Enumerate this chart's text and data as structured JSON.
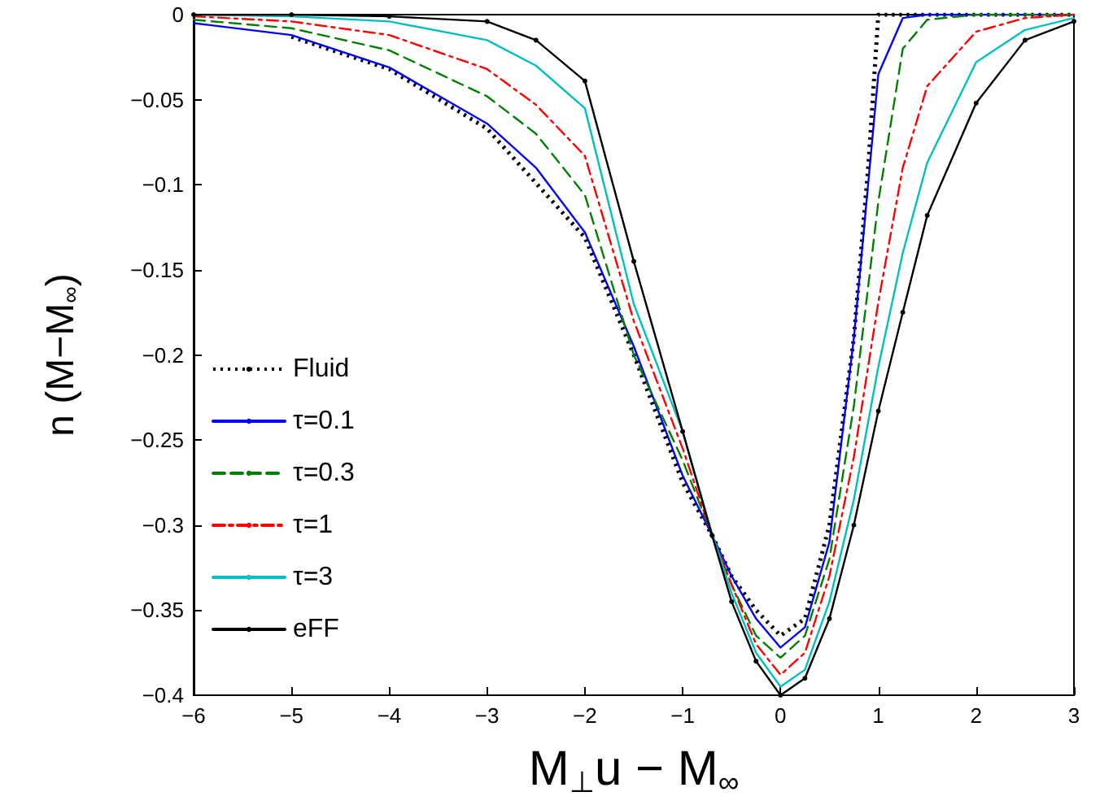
{
  "chart_data": {
    "type": "line",
    "xlabel": "M$_{⊥}$u − M$_{∞}$",
    "ylabel": "n (M−M$_{∞}$)",
    "xlim": [
      -6,
      3
    ],
    "xticks": [
      -6,
      -5,
      -4,
      -3,
      -2,
      -1,
      0,
      1,
      2,
      3
    ],
    "ylim": [
      -0.4,
      0
    ],
    "yticks": [
      -0.4,
      -0.35,
      -0.3,
      -0.25,
      -0.2,
      -0.15,
      -0.1,
      -0.05,
      0
    ],
    "grid": false,
    "legend": "bottom left",
    "marker": "none",
    "x": [
      -6,
      -5,
      -4,
      -3,
      -2.5,
      -2,
      -1.5,
      -1,
      -0.7,
      -0.5,
      -0.25,
      0,
      0.25,
      0.5,
      0.75,
      1,
      1.25,
      1.5,
      2,
      2.5,
      3
    ],
    "series": [
      {
        "name": "Fluid",
        "color": "#000000",
        "line_style": "dotted",
        "x": [
          -5,
          -4,
          -3,
          -2,
          -1.5,
          -1,
          -0.7,
          -0.5,
          -0.25,
          0,
          0.25,
          0.5,
          0.75,
          0.9,
          1,
          1.5,
          2,
          2.5,
          3
        ],
        "values": [
          -0.013,
          -0.032,
          -0.067,
          -0.131,
          -0.2,
          -0.275,
          -0.306,
          -0.33,
          -0.35,
          -0.365,
          -0.355,
          -0.3,
          -0.19,
          -0.087,
          0,
          0,
          0,
          0,
          0
        ]
      },
      {
        "name": "τ=0.1",
        "color": "#0000ff",
        "line_style": "solid",
        "values": [
          -0.005,
          -0.012,
          -0.031,
          -0.064,
          -0.09,
          -0.128,
          -0.195,
          -0.271,
          -0.306,
          -0.33,
          -0.355,
          -0.372,
          -0.36,
          -0.31,
          -0.19,
          -0.035,
          -0.002,
          0,
          0,
          0,
          0
        ]
      },
      {
        "name": "τ=0.3",
        "color": "#008000",
        "line_style": "dashed",
        "values": [
          -0.003,
          -0.008,
          -0.021,
          -0.048,
          -0.07,
          -0.106,
          -0.2,
          -0.262,
          -0.306,
          -0.335,
          -0.365,
          -0.378,
          -0.365,
          -0.32,
          -0.23,
          -0.11,
          -0.02,
          -0.003,
          0,
          0,
          0
        ]
      },
      {
        "name": "τ=1",
        "color": "#ff0000",
        "line_style": "dashdot",
        "values": [
          -0.001,
          -0.004,
          -0.012,
          -0.032,
          -0.053,
          -0.083,
          -0.18,
          -0.255,
          -0.306,
          -0.335,
          -0.37,
          -0.388,
          -0.375,
          -0.33,
          -0.26,
          -0.169,
          -0.09,
          -0.042,
          -0.01,
          -0.002,
          0
        ]
      },
      {
        "name": "τ=3",
        "color": "#00bfbf",
        "line_style": "solid",
        "values": [
          0,
          -0.001,
          -0.004,
          -0.015,
          -0.03,
          -0.055,
          -0.17,
          -0.245,
          -0.305,
          -0.34,
          -0.375,
          -0.395,
          -0.385,
          -0.345,
          -0.285,
          -0.207,
          -0.14,
          -0.087,
          -0.028,
          -0.009,
          -0.002
        ]
      },
      {
        "name": "eFF",
        "color": "#000000",
        "line_style": "solid",
        "marker": "circle",
        "values": [
          0,
          0,
          -0.001,
          -0.004,
          -0.015,
          -0.039,
          -0.145,
          -0.245,
          -0.306,
          -0.345,
          -0.38,
          -0.4,
          -0.39,
          -0.355,
          -0.3,
          -0.233,
          -0.175,
          -0.118,
          -0.052,
          -0.015,
          -0.004
        ]
      }
    ]
  }
}
